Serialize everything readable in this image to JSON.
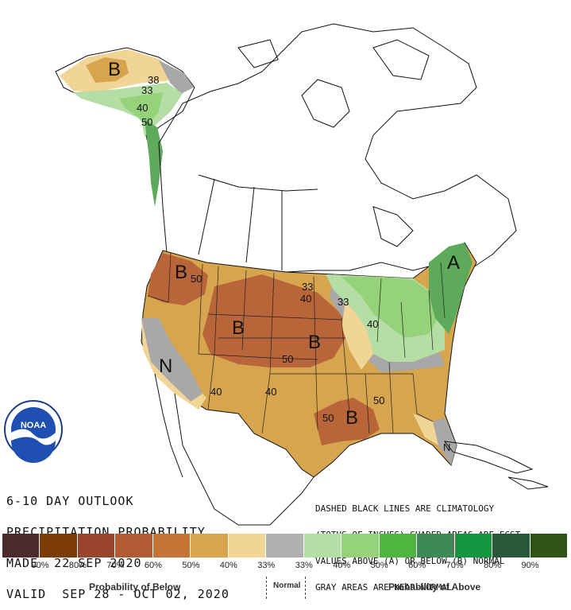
{
  "title": {
    "line1": "6-10 DAY OUTLOOK",
    "line2": "PRECIPITATION PROBABILITY",
    "line3": "MADE  22 SEP 2020",
    "line4": "VALID  SEP 28 - OCT 02, 2020"
  },
  "notes": {
    "line1": "DASHED BLACK LINES ARE CLIMATOLOGY",
    "line2": "(TOTHS OF INCHES) SHADED AREAS ARE FCST",
    "line3": "VALUES ABOVE (A) OR BELOW (B) NORMAL",
    "line4": "GRAY AREAS ARE NEAR-NORMAL"
  },
  "logo": {
    "text": "NOAA",
    "ring_text": "NATIONAL OCEANIC AND ATMOSPHERIC ADMINISTRATION · U.S. DEPARTMENT OF COMMERCE"
  },
  "map_labels": {
    "ak_b": "B",
    "ak_38": "38",
    "ak_33": "33",
    "ak_40": "40",
    "ak_50": "50",
    "nw_b": "B",
    "nw_50": "50",
    "center_b": "B",
    "plains_b": "B",
    "plains_50": "50",
    "n_mark": "N",
    "n33a": "33",
    "n33b": "33",
    "n40a": "40",
    "gl_40": "40",
    "sw_40a": "40",
    "sw_40b": "40",
    "se_b": "B",
    "se_50a": "50",
    "se_50b": "50",
    "ne_a": "A",
    "fl_n": "N"
  },
  "legend": {
    "colors": [
      "#4c2a2a",
      "#7b3c08",
      "#99442e",
      "#b35a33",
      "#c57538",
      "#d6a54e",
      "#f0d596",
      "#b0b0b0",
      "#b5dea5",
      "#96d27a",
      "#4db640",
      "#3d8a58",
      "#12963f",
      "#285838",
      "#2e5418"
    ],
    "labels": [
      "90%",
      "80%",
      "70%",
      "60%",
      "50%",
      "40%",
      "33%",
      "33%",
      "40%",
      "50%",
      "60%",
      "70%",
      "80%",
      "90%"
    ],
    "caption_below": "Probability of Below",
    "caption_normal": "Normal",
    "caption_above": "Probability of Above"
  },
  "map_colors": {
    "below_33": "#f0d596",
    "below_40": "#d6a54e",
    "below_50": "#b8653a",
    "near_normal": "#a8a8a8",
    "above_33": "#b5dea5",
    "above_40": "#96d27a",
    "above_50": "#5caa5a"
  }
}
